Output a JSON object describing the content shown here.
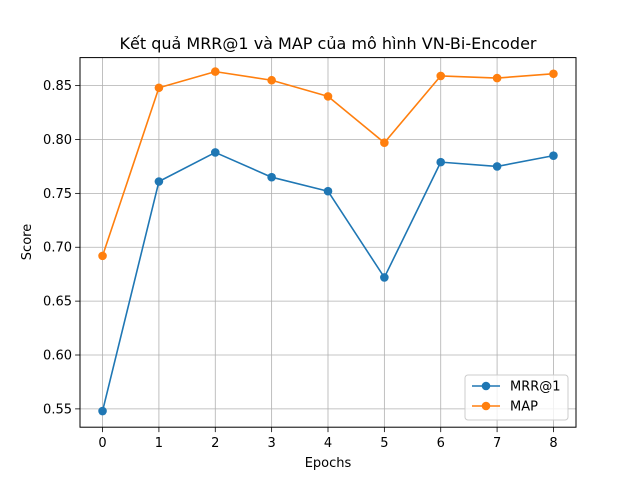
{
  "chart_data": {
    "type": "line",
    "title": "Kết quả MRR@1 và MAP của mô hình VN-Bi-Encoder",
    "xlabel": "Epochs",
    "ylabel": "Score",
    "x": [
      0,
      1,
      2,
      3,
      4,
      5,
      6,
      7,
      8
    ],
    "xlim": [
      -0.4,
      8.4
    ],
    "ylim": [
      0.533,
      0.876
    ],
    "xticks": [
      0,
      1,
      2,
      3,
      4,
      5,
      6,
      7,
      8
    ],
    "yticks": [
      0.55,
      0.6,
      0.65,
      0.7,
      0.75,
      0.8,
      0.85
    ],
    "ytick_labels": [
      "0.55",
      "0.60",
      "0.65",
      "0.70",
      "0.75",
      "0.80",
      "0.85"
    ],
    "grid": true,
    "legend_position": "lower-right",
    "marker": "circle",
    "series": [
      {
        "name": "MRR@1",
        "color": "#1f77b4",
        "values": [
          0.548,
          0.761,
          0.788,
          0.765,
          0.752,
          0.672,
          0.779,
          0.775,
          0.785
        ]
      },
      {
        "name": "MAP",
        "color": "#ff7f0e",
        "values": [
          0.692,
          0.848,
          0.863,
          0.855,
          0.84,
          0.797,
          0.859,
          0.857,
          0.861
        ]
      }
    ]
  }
}
